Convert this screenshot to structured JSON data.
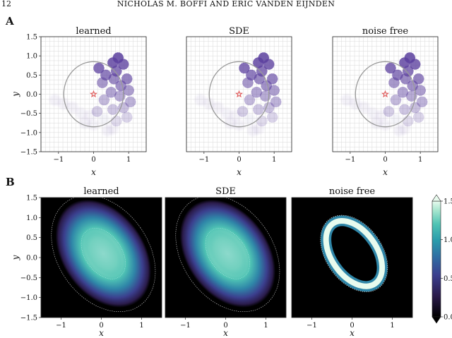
{
  "page": {
    "number": "12",
    "running_head": "NICHOLAS M. BOFFI AND ERIC VANDEN EIJNDEN"
  },
  "panel_a": {
    "letter": "A",
    "titles": [
      "learned",
      "SDE",
      "noise free"
    ],
    "xlabel": "x",
    "ylabel": "y",
    "xticks": [
      "−1",
      "0",
      "1"
    ],
    "yticks": [
      "1.5",
      "1.0",
      "0.5",
      "0.0",
      "−0.5",
      "−1.0",
      "−1.5"
    ],
    "colors": {
      "disc": "#5b3f9e",
      "circle": "#999999",
      "star": "#e05a5a",
      "grid": "#d9d9d9"
    }
  },
  "panel_b": {
    "letter": "B",
    "titles": [
      "learned",
      "SDE",
      "noise free"
    ],
    "xlabel": "x",
    "ylabel": "y",
    "xticks": [
      "−1",
      "0",
      "1"
    ],
    "yticks": [
      "1.5",
      "1.0",
      "0.5",
      "0.0",
      "−0.5",
      "−1.0",
      "−1.5"
    ],
    "colorbar_ticks": [
      "1.5",
      "1.0",
      "0.5",
      "0.0"
    ],
    "colormap": [
      "#000000",
      "#2a1b4a",
      "#3b3f8e",
      "#2f6ea3",
      "#2a9bab",
      "#4fc3b4",
      "#a8e6cf",
      "#e8fbee"
    ]
  },
  "chart_data": [
    {
      "type": "scatter",
      "panel": "A",
      "subplots": [
        "learned",
        "SDE",
        "noise free"
      ],
      "xlim": [
        -1.5,
        1.5
      ],
      "ylim": [
        -1.5,
        1.5
      ],
      "grid": true,
      "target_marker": [
        0,
        0
      ],
      "reference_circle_center": [
        0,
        0
      ],
      "reference_circle_radius": 0.85,
      "note_series_points": [
        [
          0.7,
          0.95
        ],
        [
          0.55,
          0.82
        ],
        [
          0.85,
          0.78
        ],
        [
          0.15,
          0.68
        ],
        [
          0.65,
          0.6
        ],
        [
          0.35,
          0.5
        ],
        [
          0.95,
          0.4
        ],
        [
          0.58,
          0.4
        ],
        [
          0.78,
          0.22
        ],
        [
          0.25,
          0.3
        ],
        [
          1.0,
          0.1
        ],
        [
          0.5,
          0.05
        ],
        [
          0.75,
          -0.05
        ],
        [
          1.05,
          -0.2
        ],
        [
          0.3,
          -0.15
        ],
        [
          0.85,
          -0.35
        ],
        [
          0.55,
          -0.4
        ],
        [
          0.1,
          -0.45
        ],
        [
          0.95,
          -0.6
        ],
        [
          0.65,
          -0.7
        ],
        [
          0.3,
          -0.65
        ],
        [
          -0.1,
          -0.55
        ],
        [
          0.55,
          -0.9
        ],
        [
          0.0,
          -0.8
        ],
        [
          -0.35,
          -0.5
        ],
        [
          -0.6,
          -0.35
        ],
        [
          -0.85,
          -0.25
        ],
        [
          -1.1,
          -0.15
        ],
        [
          0.4,
          -0.95
        ],
        [
          -0.25,
          -0.75
        ]
      ]
    },
    {
      "type": "heatmap",
      "panel": "B",
      "subplots": [
        "learned",
        "SDE",
        "noise free"
      ],
      "xlim": [
        -1.5,
        1.5
      ],
      "ylim": [
        -1.5,
        1.5
      ],
      "colorbar_range": [
        0.0,
        1.5
      ],
      "colorbar_ticks": [
        0.0,
        0.5,
        1.0,
        1.5
      ]
    }
  ]
}
